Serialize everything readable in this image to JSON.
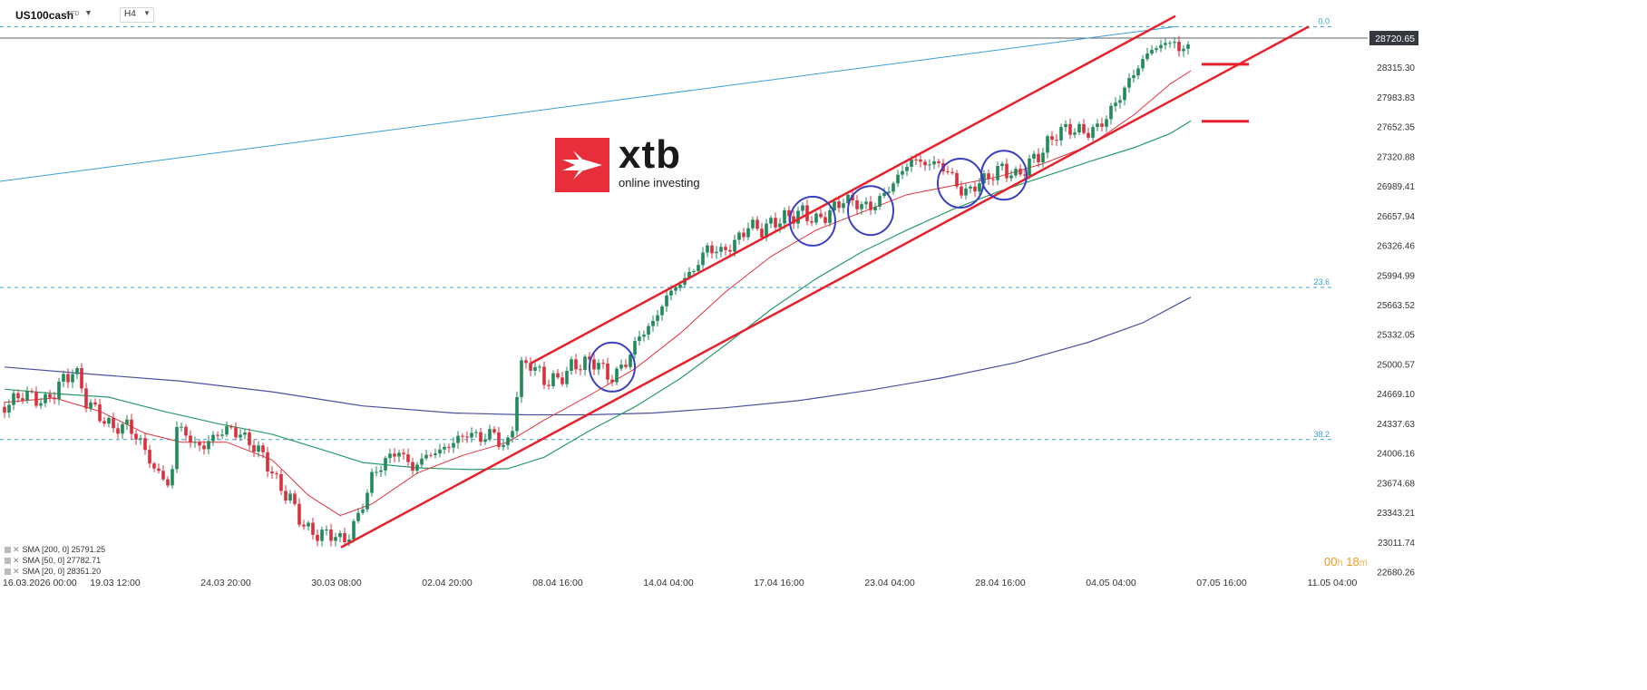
{
  "toolbar": {
    "symbol": "US100cash",
    "instrument_type": "CFD",
    "timeframe": "H4"
  },
  "logo": {
    "wordmark": "xtb",
    "tagline": "online investing"
  },
  "countdown": {
    "hours": "00",
    "hours_unit": "h",
    "minutes": "18",
    "minutes_unit": "m"
  },
  "legend": [
    "SMA [200, 0] 25791.25",
    "SMA [50, 0] 27782.71",
    "SMA [20, 0] 28351.20"
  ],
  "colors": {
    "bull": "#1f8a5a",
    "bear": "#d9303d",
    "sma20": "#e0333f",
    "sma50": "#2a9a6a",
    "sma200": "#4b4fa0",
    "channel": "#e8202c",
    "fib": "#3aa0d8",
    "circle": "#3b3fbf",
    "price_tag_bg": "#34393f"
  },
  "chart_data": {
    "type": "candlestick",
    "instrument": "US100cash",
    "timeframe": "H4",
    "current_price": "28720.65",
    "price_axis_labels": [
      "28646.77",
      "28315.30",
      "27983.83",
      "27652.35",
      "27320.88",
      "26989.41",
      "26657.94",
      "26326.46",
      "25994.99",
      "25663.52",
      "25332.05",
      "25000.57",
      "24669.10",
      "24337.63",
      "24006.16",
      "23674.68",
      "23343.21",
      "23011.74",
      "22680.26"
    ],
    "time_axis_labels": [
      "16.03.2026 00:00",
      "19.03 12:00",
      "24.03 20:00",
      "30.03 08:00",
      "02.04 20:00",
      "08.04 16:00",
      "14.04 04:00",
      "17.04 16:00",
      "23.04 04:00",
      "28.04 16:00",
      "04.05 04:00",
      "07.05 16:00",
      "11.05 04:00"
    ],
    "ylim": [
      22680.26,
      28720.65
    ],
    "fib_levels": [
      {
        "label": "0.0",
        "price": 28850
      },
      {
        "label": "23.6",
        "price": 25900
      },
      {
        "label": "38.2",
        "price": 24180
      }
    ],
    "close_path": [
      {
        "x": 5,
        "price": 24550
      },
      {
        "x": 25,
        "price": 24700
      },
      {
        "x": 50,
        "price": 24600
      },
      {
        "x": 70,
        "price": 24850
      },
      {
        "x": 82,
        "price": 24980
      },
      {
        "x": 95,
        "price": 24620
      },
      {
        "x": 110,
        "price": 24450
      },
      {
        "x": 125,
        "price": 24300
      },
      {
        "x": 140,
        "price": 24350
      },
      {
        "x": 155,
        "price": 24150
      },
      {
        "x": 170,
        "price": 23850
      },
      {
        "x": 188,
        "price": 23650
      },
      {
        "x": 196,
        "price": 24400
      },
      {
        "x": 210,
        "price": 24150
      },
      {
        "x": 225,
        "price": 24100
      },
      {
        "x": 240,
        "price": 24250
      },
      {
        "x": 255,
        "price": 24300
      },
      {
        "x": 272,
        "price": 24180
      },
      {
        "x": 290,
        "price": 24000
      },
      {
        "x": 305,
        "price": 23700
      },
      {
        "x": 320,
        "price": 23500
      },
      {
        "x": 338,
        "price": 23150
      },
      {
        "x": 355,
        "price": 23100
      },
      {
        "x": 368,
        "price": 23120
      },
      {
        "x": 378,
        "price": 23000
      },
      {
        "x": 395,
        "price": 23300
      },
      {
        "x": 410,
        "price": 23750
      },
      {
        "x": 425,
        "price": 23950
      },
      {
        "x": 440,
        "price": 24050
      },
      {
        "x": 455,
        "price": 23850
      },
      {
        "x": 470,
        "price": 24000
      },
      {
        "x": 485,
        "price": 24050
      },
      {
        "x": 500,
        "price": 24150
      },
      {
        "x": 515,
        "price": 24250
      },
      {
        "x": 530,
        "price": 24200
      },
      {
        "x": 545,
        "price": 24250
      },
      {
        "x": 558,
        "price": 24050
      },
      {
        "x": 568,
        "price": 24450
      },
      {
        "x": 572,
        "price": 24980
      },
      {
        "x": 585,
        "price": 25050
      },
      {
        "x": 600,
        "price": 24850
      },
      {
        "x": 615,
        "price": 24850
      },
      {
        "x": 630,
        "price": 25000
      },
      {
        "x": 645,
        "price": 25050
      },
      {
        "x": 660,
        "price": 25050
      },
      {
        "x": 672,
        "price": 24850
      },
      {
        "x": 690,
        "price": 25050
      },
      {
        "x": 705,
        "price": 25350
      },
      {
        "x": 720,
        "price": 25500
      },
      {
        "x": 735,
        "price": 25800
      },
      {
        "x": 750,
        "price": 25950
      },
      {
        "x": 765,
        "price": 26100
      },
      {
        "x": 780,
        "price": 26350
      },
      {
        "x": 795,
        "price": 26300
      },
      {
        "x": 810,
        "price": 26400
      },
      {
        "x": 825,
        "price": 26600
      },
      {
        "x": 840,
        "price": 26550
      },
      {
        "x": 855,
        "price": 26650
      },
      {
        "x": 870,
        "price": 26700
      },
      {
        "x": 885,
        "price": 26750
      },
      {
        "x": 900,
        "price": 26650
      },
      {
        "x": 915,
        "price": 26750
      },
      {
        "x": 930,
        "price": 26900
      },
      {
        "x": 945,
        "price": 26850
      },
      {
        "x": 960,
        "price": 26800
      },
      {
        "x": 975,
        "price": 26950
      },
      {
        "x": 990,
        "price": 27150
      },
      {
        "x": 1005,
        "price": 27350
      },
      {
        "x": 1020,
        "price": 27300
      },
      {
        "x": 1035,
        "price": 27300
      },
      {
        "x": 1050,
        "price": 27150
      },
      {
        "x": 1062,
        "price": 26950
      },
      {
        "x": 1075,
        "price": 27050
      },
      {
        "x": 1090,
        "price": 27150
      },
      {
        "x": 1105,
        "price": 27250
      },
      {
        "x": 1120,
        "price": 27150
      },
      {
        "x": 1135,
        "price": 27300
      },
      {
        "x": 1150,
        "price": 27450
      },
      {
        "x": 1165,
        "price": 27650
      },
      {
        "x": 1180,
        "price": 27700
      },
      {
        "x": 1195,
        "price": 27650
      },
      {
        "x": 1210,
        "price": 27700
      },
      {
        "x": 1225,
        "price": 27900
      },
      {
        "x": 1240,
        "price": 28150
      },
      {
        "x": 1255,
        "price": 28400
      },
      {
        "x": 1270,
        "price": 28600
      },
      {
        "x": 1285,
        "price": 28650
      },
      {
        "x": 1295,
        "price": 28700
      },
      {
        "x": 1302,
        "price": 28500
      },
      {
        "x": 1308,
        "price": 28650
      },
      {
        "x": 1313,
        "price": 28720
      }
    ],
    "sma20": [
      {
        "x": 5,
        "price": 24600
      },
      {
        "x": 60,
        "price": 24650
      },
      {
        "x": 110,
        "price": 24500
      },
      {
        "x": 160,
        "price": 24250
      },
      {
        "x": 200,
        "price": 24150
      },
      {
        "x": 250,
        "price": 24150
      },
      {
        "x": 300,
        "price": 23950
      },
      {
        "x": 340,
        "price": 23550
      },
      {
        "x": 375,
        "price": 23320
      },
      {
        "x": 410,
        "price": 23450
      },
      {
        "x": 460,
        "price": 23800
      },
      {
        "x": 510,
        "price": 24000
      },
      {
        "x": 560,
        "price": 24150
      },
      {
        "x": 600,
        "price": 24400
      },
      {
        "x": 650,
        "price": 24680
      },
      {
        "x": 700,
        "price": 24980
      },
      {
        "x": 750,
        "price": 25380
      },
      {
        "x": 800,
        "price": 25850
      },
      {
        "x": 850,
        "price": 26250
      },
      {
        "x": 900,
        "price": 26550
      },
      {
        "x": 950,
        "price": 26750
      },
      {
        "x": 1000,
        "price": 26950
      },
      {
        "x": 1050,
        "price": 27050
      },
      {
        "x": 1100,
        "price": 27150
      },
      {
        "x": 1150,
        "price": 27300
      },
      {
        "x": 1200,
        "price": 27500
      },
      {
        "x": 1250,
        "price": 27850
      },
      {
        "x": 1290,
        "price": 28200
      },
      {
        "x": 1313,
        "price": 28351
      }
    ],
    "sma50": [
      {
        "x": 5,
        "price": 24750
      },
      {
        "x": 60,
        "price": 24700
      },
      {
        "x": 120,
        "price": 24660
      },
      {
        "x": 180,
        "price": 24500
      },
      {
        "x": 240,
        "price": 24360
      },
      {
        "x": 300,
        "price": 24240
      },
      {
        "x": 360,
        "price": 24050
      },
      {
        "x": 400,
        "price": 23920
      },
      {
        "x": 460,
        "price": 23860
      },
      {
        "x": 520,
        "price": 23840
      },
      {
        "x": 560,
        "price": 23850
      },
      {
        "x": 600,
        "price": 23980
      },
      {
        "x": 650,
        "price": 24280
      },
      {
        "x": 700,
        "price": 24550
      },
      {
        "x": 750,
        "price": 24870
      },
      {
        "x": 800,
        "price": 25250
      },
      {
        "x": 850,
        "price": 25650
      },
      {
        "x": 900,
        "price": 26000
      },
      {
        "x": 950,
        "price": 26300
      },
      {
        "x": 1000,
        "price": 26550
      },
      {
        "x": 1050,
        "price": 26780
      },
      {
        "x": 1100,
        "price": 26980
      },
      {
        "x": 1150,
        "price": 27150
      },
      {
        "x": 1200,
        "price": 27320
      },
      {
        "x": 1250,
        "price": 27480
      },
      {
        "x": 1290,
        "price": 27640
      },
      {
        "x": 1313,
        "price": 27783
      }
    ],
    "sma200": [
      {
        "x": 5,
        "price": 25000
      },
      {
        "x": 100,
        "price": 24920
      },
      {
        "x": 200,
        "price": 24840
      },
      {
        "x": 300,
        "price": 24720
      },
      {
        "x": 400,
        "price": 24560
      },
      {
        "x": 500,
        "price": 24480
      },
      {
        "x": 580,
        "price": 24460
      },
      {
        "x": 650,
        "price": 24460
      },
      {
        "x": 720,
        "price": 24480
      },
      {
        "x": 800,
        "price": 24540
      },
      {
        "x": 880,
        "price": 24620
      },
      {
        "x": 960,
        "price": 24740
      },
      {
        "x": 1040,
        "price": 24880
      },
      {
        "x": 1120,
        "price": 25050
      },
      {
        "x": 1200,
        "price": 25280
      },
      {
        "x": 1260,
        "price": 25500
      },
      {
        "x": 1313,
        "price": 25791
      }
    ],
    "channel_upper": [
      {
        "x": 585,
        "price": 25040
      },
      {
        "x": 1296,
        "price": 28970
      }
    ],
    "channel_lower": [
      {
        "x": 376,
        "price": 22960
      },
      {
        "x": 1443,
        "price": 28850
      }
    ],
    "fan_line": [
      {
        "x": 0,
        "price": 27100
      },
      {
        "x": 1296,
        "price": 28850
      }
    ],
    "support_marks": [
      {
        "x1": 1325,
        "x2": 1377,
        "price": 28425
      },
      {
        "x1": 1325,
        "x2": 1377,
        "price": 27780
      }
    ],
    "highlight_circles": [
      {
        "x": 675,
        "price": 25000
      },
      {
        "x": 896,
        "price": 26650
      },
      {
        "x": 960,
        "price": 26770
      },
      {
        "x": 1059,
        "price": 27080
      },
      {
        "x": 1107,
        "price": 27170
      }
    ]
  }
}
